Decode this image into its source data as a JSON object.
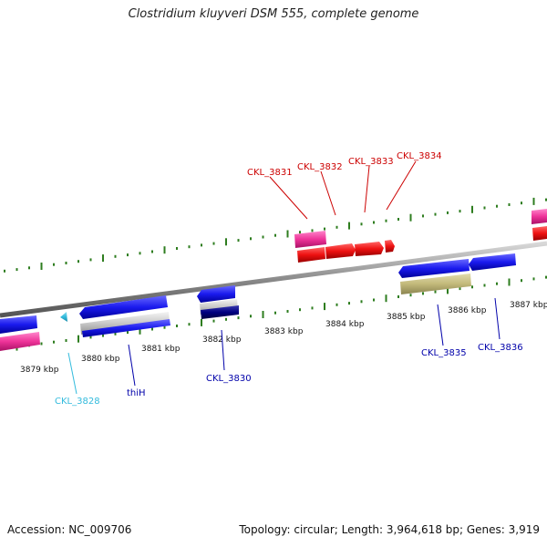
{
  "title": "Clostridium kluyveri DSM 555, complete genome",
  "footer": {
    "accession": "Accession: NC_009706",
    "summary": "Topology: circular; Length: 3,964,618 bp; Genes: 3,919"
  },
  "axis": {
    "unit": "kbp",
    "tick_labels": [
      "3879 kbp",
      "3880 kbp",
      "3881 kbp",
      "3882 kbp",
      "3883 kbp",
      "3884 kbp",
      "3885 kbp",
      "3886 kbp",
      "3887 kbp"
    ]
  },
  "colors": {
    "backbone": "#8a8a8a",
    "tick_green": "#2e7d1f",
    "forward_label": "#cc0000",
    "reverse_label": "#0000aa",
    "cyan_label": "#33bbdd",
    "gene_red": "#ee1111",
    "gene_pink": "#ee3399",
    "gene_blue": "#1a1aee",
    "gene_navy": "#000080",
    "gene_olive": "#c2b97a",
    "gene_silver": "#c8c8c8",
    "gene_cyan": "#33bbdd"
  },
  "genes": {
    "forward": [
      "CKL_3831",
      "CKL_3832",
      "CKL_3833",
      "CKL_3834"
    ],
    "reverse": [
      "CKL_3828",
      "thiH",
      "CKL_3830",
      "CKL_3835",
      "CKL_3836"
    ]
  }
}
